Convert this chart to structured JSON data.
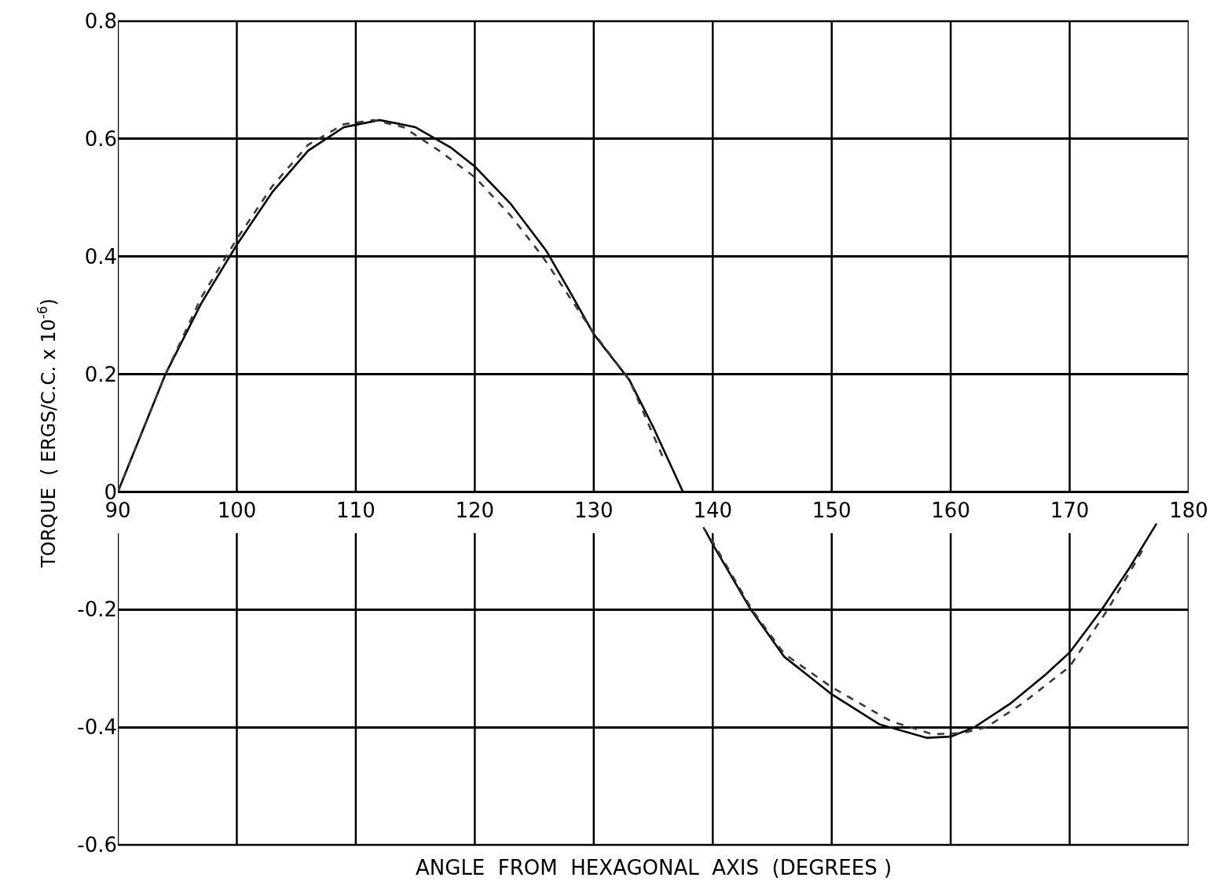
{
  "chart_data": {
    "type": "line",
    "xlabel": "ANGLE  FROM  HEXAGONAL  AXIS  (DEGREES )",
    "ylabel": "TORQUE  ( ERGS/C.C. x 10$^{-6}$)",
    "xlim": [
      90,
      180
    ],
    "ylim": [
      -0.6,
      0.8
    ],
    "xticks": [
      90,
      100,
      110,
      120,
      130,
      140,
      150,
      160,
      170,
      180
    ],
    "yticks": [
      -0.6,
      -0.4,
      -0.2,
      0,
      0.2,
      0.4,
      0.6,
      0.8
    ],
    "grid": true,
    "series": [
      {
        "color": "#000000",
        "line_style": "solid",
        "x": [
          90,
          92,
          94,
          97,
          100,
          103,
          106,
          109,
          112,
          115,
          118,
          120,
          123,
          126,
          128,
          130,
          133,
          135,
          137.5,
          null,
          139.3,
          140,
          143.2,
          146,
          150,
          154,
          158,
          160,
          162,
          165,
          168,
          170,
          172.7,
          175,
          177.3
        ],
        "values": [
          0,
          0.1,
          0.2,
          0.32,
          0.42,
          0.51,
          0.58,
          0.62,
          0.632,
          0.62,
          0.585,
          0.553,
          0.49,
          0.41,
          0.34,
          0.268,
          0.19,
          0.11,
          0,
          null,
          -0.063,
          -0.089,
          -0.2,
          -0.28,
          -0.344,
          -0.395,
          -0.418,
          -0.416,
          -0.4,
          -0.36,
          -0.31,
          -0.273,
          -0.2,
          -0.13,
          -0.054
        ]
      },
      {
        "color": "#3a3a3a",
        "line_style": "dashed",
        "x": [
          90,
          92,
          94,
          97,
          100,
          103,
          106,
          109,
          111.5,
          114,
          117,
          120,
          123,
          125.7,
          128,
          130,
          133,
          136,
          null,
          139.2,
          140,
          143.3,
          146,
          150,
          155,
          158.5,
          161,
          163,
          166,
          170,
          173.2,
          176.1
        ],
        "values": [
          0,
          0.1,
          0.2,
          0.33,
          0.43,
          0.52,
          0.59,
          0.625,
          0.632,
          0.62,
          0.58,
          0.535,
          0.47,
          0.4,
          0.33,
          0.27,
          0.19,
          0.05,
          null,
          -0.06,
          -0.085,
          -0.2,
          -0.275,
          -0.332,
          -0.39,
          -0.412,
          -0.41,
          -0.4,
          -0.36,
          -0.297,
          -0.2,
          -0.1
        ]
      }
    ]
  }
}
